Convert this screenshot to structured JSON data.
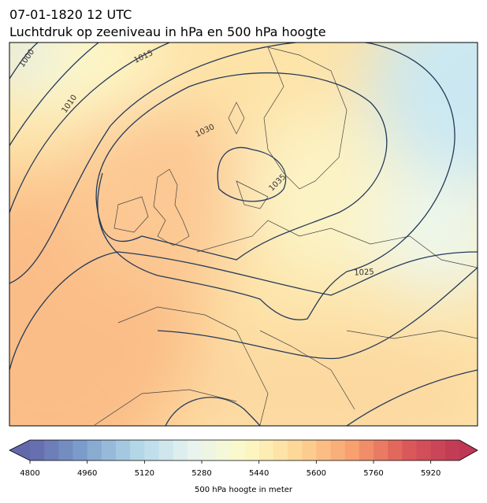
{
  "title": "07-01-1820 12 UTC",
  "subtitle": "Luchtdruk op zeeniveau in hPa en 500 hPa hoogte",
  "contour_labels": [
    1000,
    1010,
    1015,
    1030,
    1035,
    1025
  ],
  "colorbar": {
    "label": "500 hPa hoogte in meter",
    "vmin": 4800,
    "vmax": 6000,
    "ticks": [
      4800,
      4960,
      5120,
      5280,
      5440,
      5600,
      5760,
      5920
    ]
  }
}
